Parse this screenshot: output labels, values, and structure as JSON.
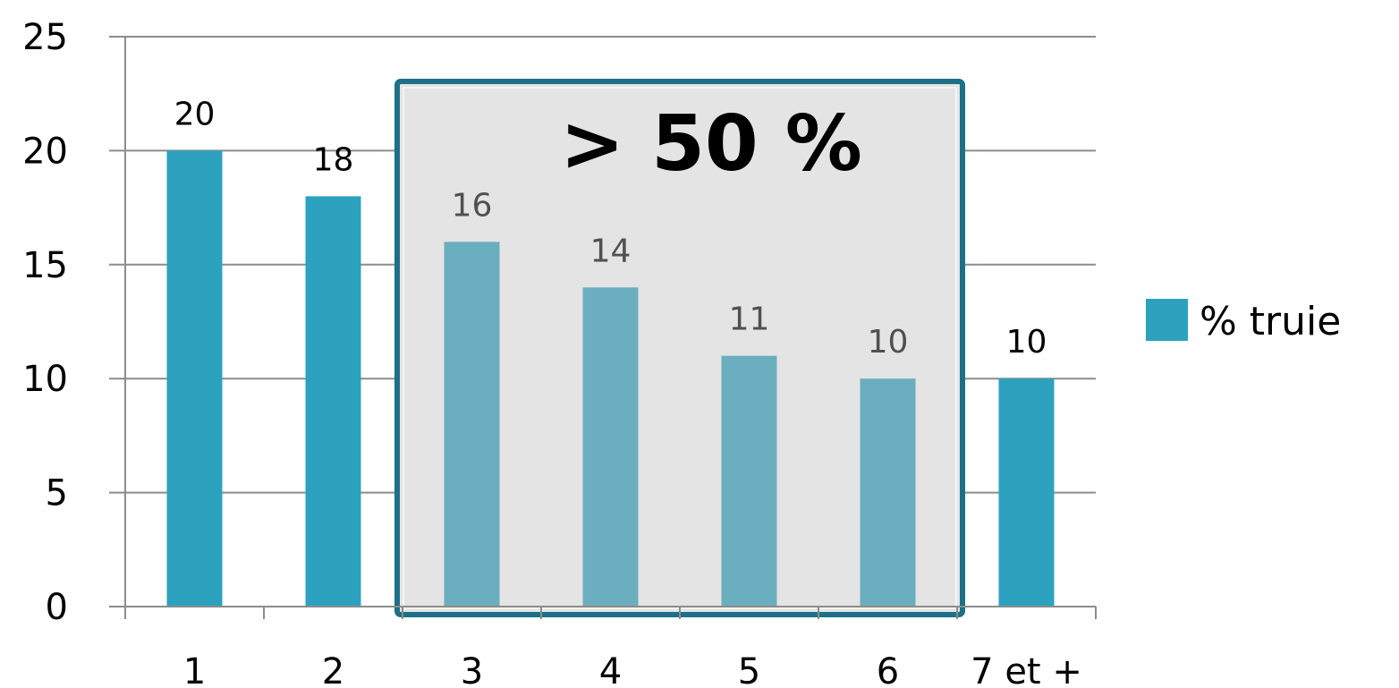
{
  "chart_data": {
    "type": "bar",
    "categories": [
      "1",
      "2",
      "3",
      "4",
      "5",
      "6",
      "7 et +"
    ],
    "series": [
      {
        "name": "% truie",
        "values": [
          20,
          18,
          16,
          14,
          11,
          10,
          10
        ]
      }
    ],
    "data_labels": [
      "20",
      "18",
      "16",
      "14",
      "11",
      "10",
      "10"
    ],
    "y_ticks": [
      "0",
      "5",
      "10",
      "15",
      "20",
      "25"
    ],
    "ylim": [
      0,
      25
    ],
    "grid": "horizontal",
    "legend_position": "right",
    "title": "",
    "xlabel": "",
    "ylabel": "",
    "highlight": {
      "text": "> 50 %",
      "categories": [
        "3",
        "4",
        "5",
        "6"
      ]
    },
    "colors": {
      "bar": "#2ca2bf",
      "bar_highlighted": "#6aaebf",
      "highlight_fill": "#e4e4e4",
      "highlight_border": "#1e7088",
      "grid": "#8c8c8c",
      "label": "#000000",
      "label_highlighted": "#505050"
    }
  }
}
